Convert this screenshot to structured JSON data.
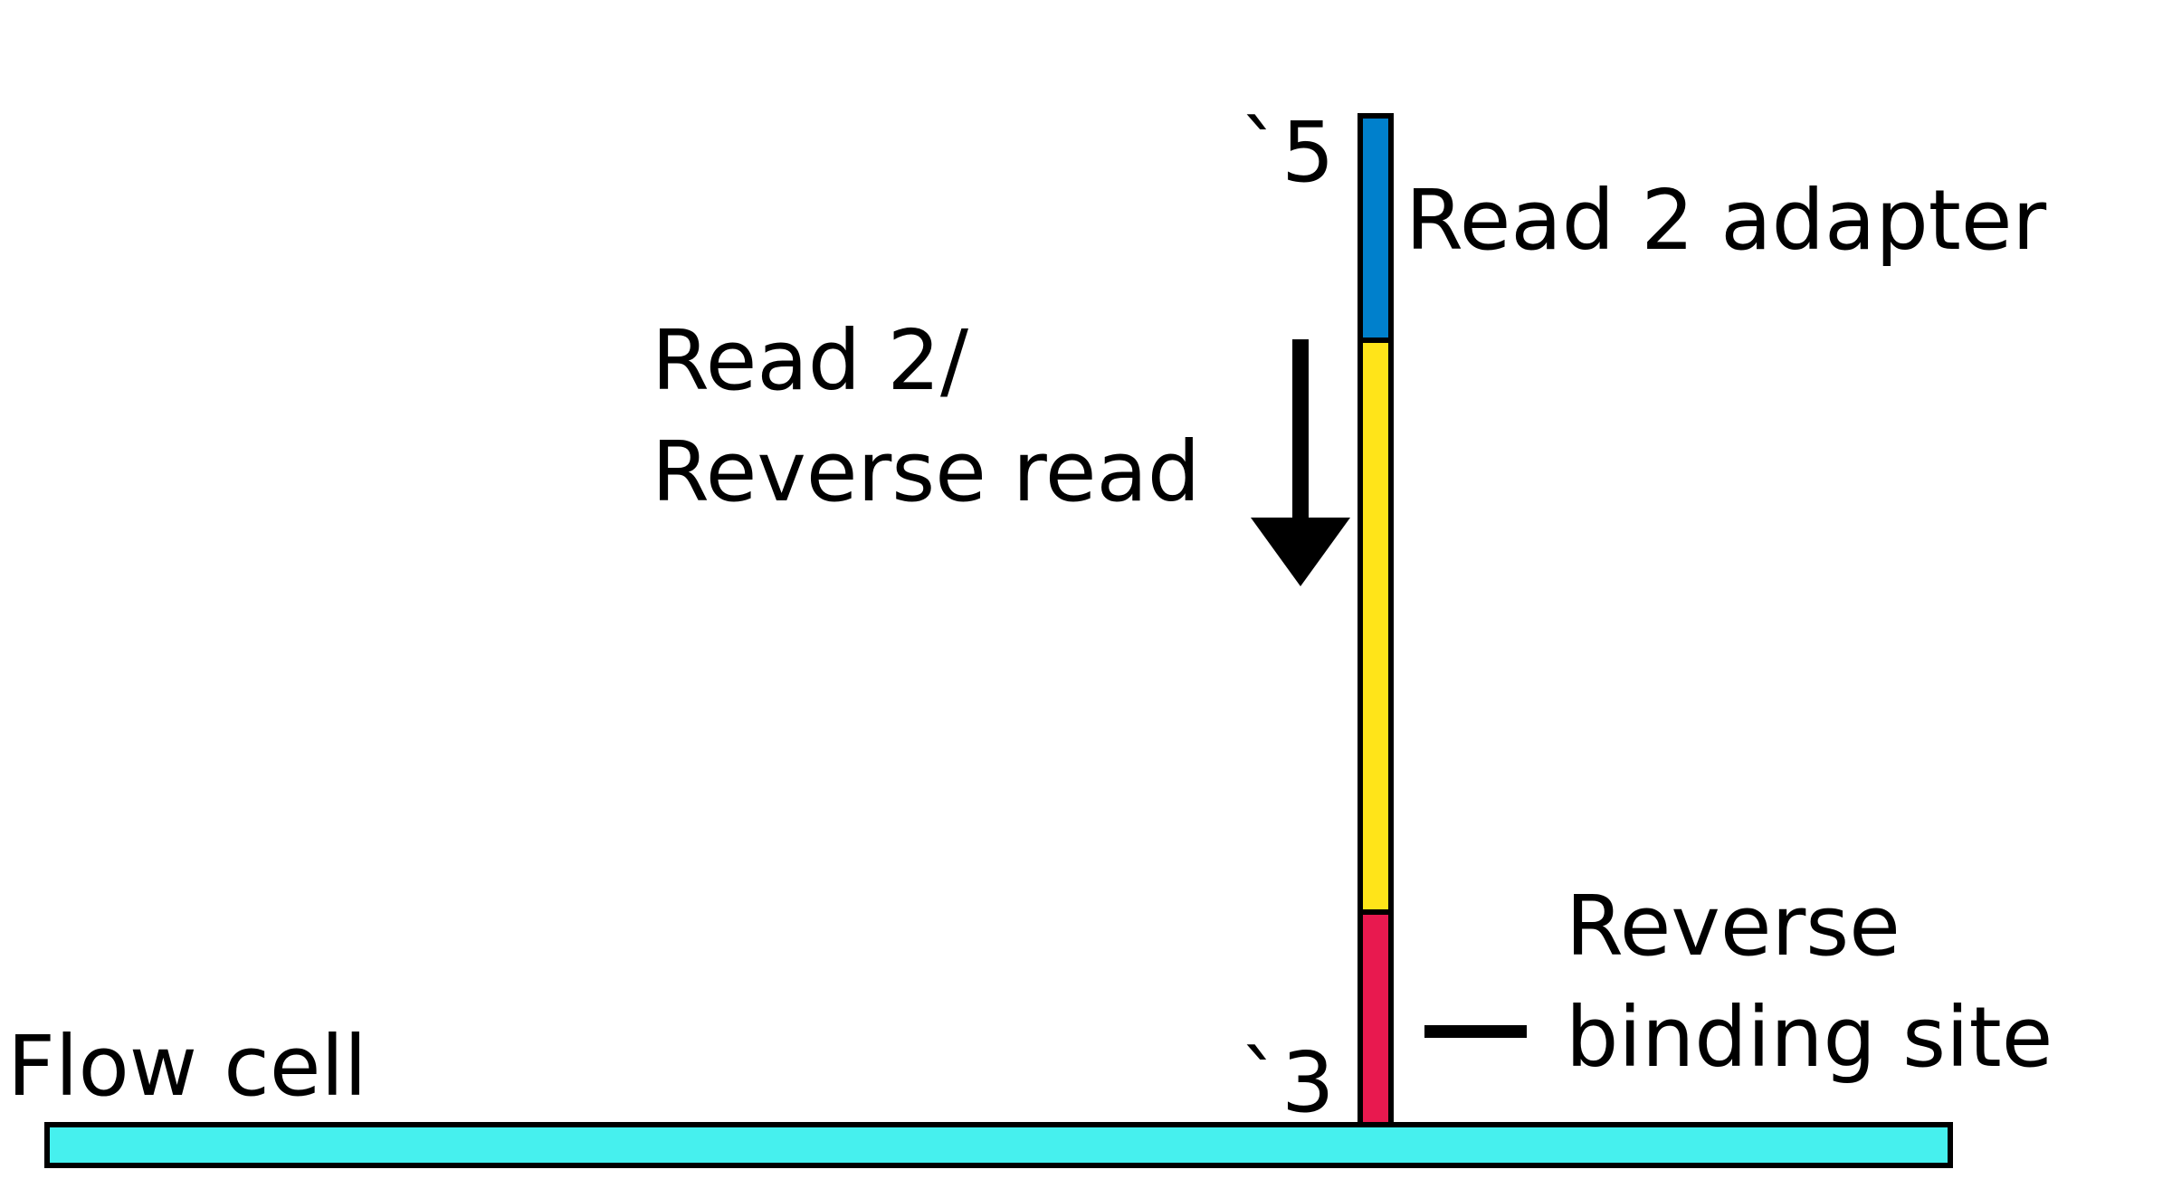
{
  "labels": {
    "five_prime": "`5",
    "three_prime": "`3",
    "read2_adapter": "Read 2 adapter",
    "read2_line1": "Read 2/",
    "read2_line2": "Reverse read",
    "reverse_line1": "Reverse",
    "reverse_line2": "binding site",
    "flow_cell": "Flow cell"
  },
  "colors": {
    "flow_cell": "#46f0ee",
    "read2_adapter": "#0080cc",
    "insert": "#ffe419",
    "reverse_binding_site": "#e8194f",
    "outline": "#000000"
  }
}
